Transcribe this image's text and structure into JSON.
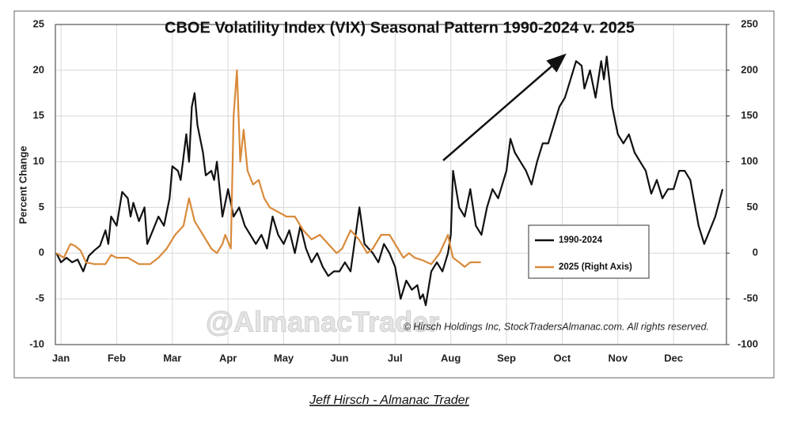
{
  "chart_data": {
    "type": "line",
    "title": "CBOE Volatility Index (VIX) Seasonal Pattern 1990-2024 v. 2025",
    "ylabel": "Percent Change",
    "annotation": "© Hirsch Holdings Inc, StockTradersAlmanac.com. All rights reserved.",
    "watermark": "@AlmanacTrader",
    "caption": "Jeff Hirsch - Almanac Trader",
    "xlim": [
      -0.1,
      11.95
    ],
    "xticks": [
      {
        "value": 0,
        "label": "Jan"
      },
      {
        "value": 1,
        "label": "Feb"
      },
      {
        "value": 2,
        "label": "Mar"
      },
      {
        "value": 3,
        "label": "Apr"
      },
      {
        "value": 4,
        "label": "May"
      },
      {
        "value": 5,
        "label": "Jun"
      },
      {
        "value": 6,
        "label": "Jul"
      },
      {
        "value": 7,
        "label": "Aug"
      },
      {
        "value": 8,
        "label": "Sep"
      },
      {
        "value": 9,
        "label": "Oct"
      },
      {
        "value": 10,
        "label": "Nov"
      },
      {
        "value": 11,
        "label": "Dec"
      }
    ],
    "ylim": [
      -10,
      25
    ],
    "yticks": [
      -10,
      -5,
      0,
      5,
      10,
      15,
      20,
      25
    ],
    "y2lim": [
      -100,
      250
    ],
    "y2ticks": [
      -100,
      -50,
      0,
      50,
      100,
      150,
      200,
      250
    ],
    "y2_negative_tick_color": "#e00000",
    "grid": true,
    "series": [
      {
        "name": "1990-2024",
        "color": "#111111",
        "x": [
          -0.08,
          0.0,
          0.1,
          0.2,
          0.3,
          0.4,
          0.5,
          0.6,
          0.7,
          0.8,
          0.85,
          0.9,
          1.0,
          1.1,
          1.2,
          1.25,
          1.3,
          1.4,
          1.5,
          1.55,
          1.65,
          1.75,
          1.85,
          1.95,
          2.0,
          2.1,
          2.15,
          2.25,
          2.3,
          2.35,
          2.4,
          2.45,
          2.55,
          2.6,
          2.7,
          2.75,
          2.8,
          2.9,
          3.0,
          3.1,
          3.2,
          3.3,
          3.4,
          3.5,
          3.6,
          3.7,
          3.8,
          3.9,
          4.0,
          4.1,
          4.2,
          4.3,
          4.4,
          4.5,
          4.6,
          4.7,
          4.8,
          4.9,
          5.0,
          5.1,
          5.2,
          5.36,
          5.45,
          5.6,
          5.7,
          5.8,
          5.9,
          6.0,
          6.1,
          6.2,
          6.3,
          6.4,
          6.45,
          6.5,
          6.55,
          6.65,
          6.75,
          6.85,
          6.95,
          7.0,
          7.04,
          7.15,
          7.25,
          7.35,
          7.45,
          7.55,
          7.65,
          7.75,
          7.85,
          7.95,
          8.0,
          8.07,
          8.15,
          8.25,
          8.35,
          8.45,
          8.55,
          8.65,
          8.75,
          8.85,
          8.95,
          9.05,
          9.15,
          9.25,
          9.35,
          9.4,
          9.5,
          9.6,
          9.7,
          9.75,
          9.8,
          9.9,
          10.0,
          10.1,
          10.2,
          10.3,
          10.4,
          10.5,
          10.6,
          10.7,
          10.8,
          10.9,
          11.0,
          11.1,
          11.2,
          11.3,
          11.45,
          11.55,
          11.65,
          11.75,
          11.88
        ],
        "values": [
          0,
          -1,
          -0.5,
          -1,
          -0.7,
          -2,
          -0.3,
          0.3,
          0.8,
          2.5,
          1,
          4,
          3,
          6.7,
          6,
          4,
          5.5,
          3.5,
          5,
          1,
          2.5,
          4,
          3,
          6,
          9.5,
          9,
          8,
          13,
          10,
          16,
          17.5,
          14,
          11,
          8.5,
          9,
          8,
          10,
          4,
          7,
          4,
          5,
          3,
          2,
          1,
          2,
          0.5,
          4,
          2,
          1,
          2.5,
          0,
          3,
          0.5,
          -1,
          0,
          -1.5,
          -2.5,
          -2,
          -2,
          -1,
          -2,
          5,
          1,
          0,
          -1,
          1,
          0,
          -1.5,
          -5,
          -3,
          -4,
          -3.5,
          -5,
          -4.5,
          -5.7,
          -2,
          -1,
          -2,
          0,
          2,
          9,
          5,
          4,
          7,
          3,
          2,
          5,
          7,
          6,
          8,
          9,
          12.5,
          11,
          10,
          9,
          7.5,
          10,
          12,
          12,
          14,
          16,
          17,
          19,
          21,
          20.5,
          18,
          20,
          17,
          21,
          19,
          21.5,
          16,
          13,
          12,
          13,
          11,
          10,
          9,
          6.5,
          8,
          6,
          7,
          7,
          9,
          9,
          8,
          3,
          1,
          2.5,
          4,
          7
        ]
      },
      {
        "name": "2025 (Right Axis)",
        "color": "#d98a3a",
        "axis": "y2",
        "x": [
          -0.08,
          0.05,
          0.17,
          0.25,
          0.35,
          0.45,
          0.6,
          0.8,
          0.9,
          1.0,
          1.2,
          1.4,
          1.6,
          1.75,
          1.9,
          2.05,
          2.2,
          2.3,
          2.4,
          2.5,
          2.6,
          2.7,
          2.8,
          2.9,
          2.95,
          3.05,
          3.1,
          3.16,
          3.22,
          3.28,
          3.35,
          3.45,
          3.55,
          3.65,
          3.75,
          3.9,
          4.05,
          4.2,
          4.35,
          4.5,
          4.65,
          4.8,
          4.95,
          5.05,
          5.2,
          5.35,
          5.5,
          5.6,
          5.75,
          5.9,
          6.05,
          6.15,
          6.25,
          6.35,
          6.5,
          6.65,
          6.8,
          6.95,
          7.0,
          7.04,
          7.15,
          7.25,
          7.35,
          7.45,
          7.54
        ],
        "values": [
          0,
          -5,
          10,
          8,
          3,
          -10,
          -12,
          -12,
          -2,
          -5,
          -5,
          -12,
          -12,
          -5,
          5,
          20,
          30,
          60,
          35,
          25,
          15,
          5,
          0,
          10,
          20,
          5,
          150,
          200,
          100,
          135,
          90,
          75,
          80,
          60,
          50,
          45,
          40,
          40,
          25,
          15,
          20,
          10,
          0,
          5,
          25,
          15,
          0,
          5,
          20,
          20,
          5,
          -5,
          0,
          -5,
          -8,
          -12,
          0,
          20,
          5,
          -5,
          -10,
          -15,
          -10,
          -10,
          -10
        ]
      }
    ]
  }
}
